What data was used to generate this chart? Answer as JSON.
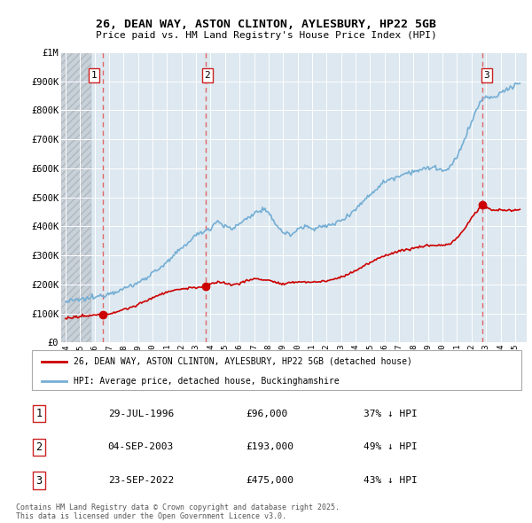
{
  "title": "26, DEAN WAY, ASTON CLINTON, AYLESBURY, HP22 5GB",
  "subtitle": "Price paid vs. HM Land Registry's House Price Index (HPI)",
  "ylim": [
    0,
    1000000
  ],
  "yticks": [
    0,
    100000,
    200000,
    300000,
    400000,
    500000,
    600000,
    700000,
    800000,
    900000,
    1000000
  ],
  "ytick_labels": [
    "£0",
    "£100K",
    "£200K",
    "£300K",
    "£400K",
    "£500K",
    "£600K",
    "£700K",
    "£800K",
    "£900K",
    "£1M"
  ],
  "xlim_start": 1993.7,
  "xlim_end": 2025.8,
  "hpi_color": "#74aed4",
  "price_color": "#cc0000",
  "dashed_color": "#e05050",
  "bg_color": "#dde8f0",
  "hatch_left_end": 1995.75,
  "transaction_dates": [
    1996.575,
    2003.675,
    2022.73
  ],
  "transaction_prices": [
    96000,
    193000,
    475000
  ],
  "transaction_labels": [
    "1",
    "2",
    "3"
  ],
  "legend_price_label": "26, DEAN WAY, ASTON CLINTON, AYLESBURY, HP22 5GB (detached house)",
  "legend_hpi_label": "HPI: Average price, detached house, Buckinghamshire",
  "table_rows": [
    [
      "1",
      "29-JUL-1996",
      "£96,000",
      "37% ↓ HPI"
    ],
    [
      "2",
      "04-SEP-2003",
      "£193,000",
      "49% ↓ HPI"
    ],
    [
      "3",
      "23-SEP-2022",
      "£475,000",
      "43% ↓ HPI"
    ]
  ],
  "footer": "Contains HM Land Registry data © Crown copyright and database right 2025.\nThis data is licensed under the Open Government Licence v3.0."
}
